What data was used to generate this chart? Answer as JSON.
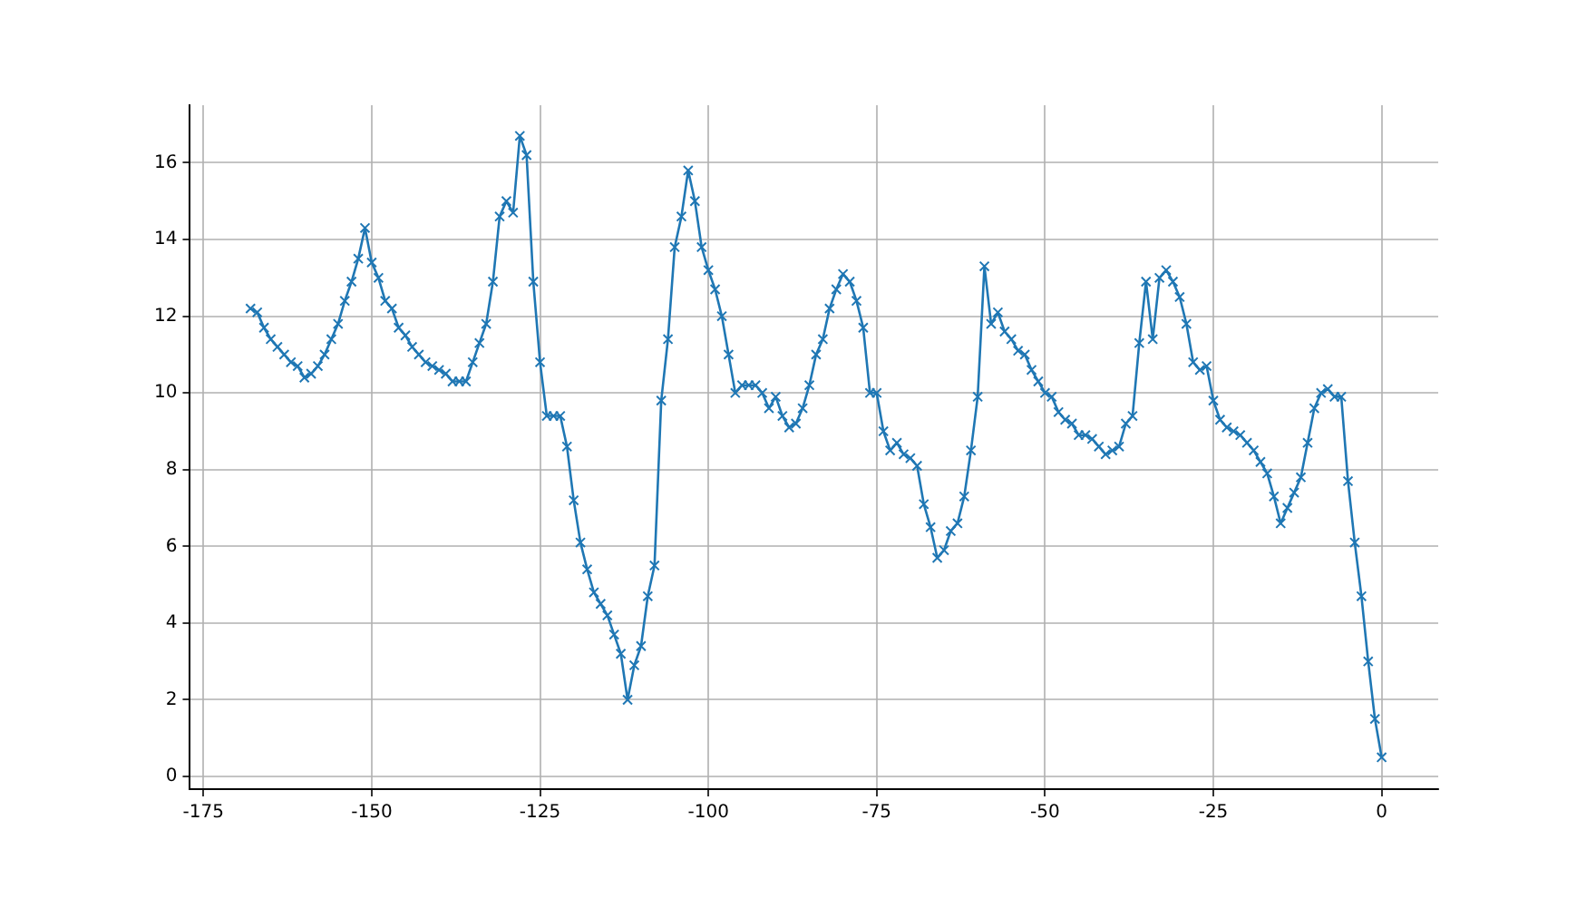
{
  "chart_data": {
    "type": "line",
    "x": [
      -168,
      -167,
      -166,
      -165,
      -164,
      -163,
      -162,
      -161,
      -160,
      -159,
      -158,
      -157,
      -156,
      -155,
      -154,
      -153,
      -152,
      -151,
      -150,
      -149,
      -148,
      -147,
      -146,
      -145,
      -144,
      -143,
      -142,
      -141,
      -140,
      -139,
      -138,
      -137,
      -136,
      -135,
      -134,
      -133,
      -132,
      -131,
      -130,
      -129,
      -128,
      -127,
      -126,
      -125,
      -124,
      -123,
      -122,
      -121,
      -120,
      -119,
      -118,
      -117,
      -116,
      -115,
      -114,
      -113,
      -112,
      -111,
      -110,
      -109,
      -108,
      -107,
      -106,
      -105,
      -104,
      -103,
      -102,
      -101,
      -100,
      -99,
      -98,
      -97,
      -96,
      -95,
      -94,
      -93,
      -92,
      -91,
      -90,
      -89,
      -88,
      -87,
      -86,
      -85,
      -84,
      -83,
      -82,
      -81,
      -80,
      -79,
      -78,
      -77,
      -76,
      -75,
      -74,
      -73,
      -72,
      -71,
      -70,
      -69,
      -68,
      -67,
      -66,
      -65,
      -64,
      -63,
      -62,
      -61,
      -60,
      -59,
      -58,
      -57,
      -56,
      -55,
      -54,
      -53,
      -52,
      -51,
      -50,
      -49,
      -48,
      -47,
      -46,
      -45,
      -44,
      -43,
      -42,
      -41,
      -40,
      -39,
      -38,
      -37,
      -36,
      -35,
      -34,
      -33,
      -32,
      -31,
      -30,
      -29,
      -28,
      -27,
      -26,
      -25,
      -24,
      -23,
      -22,
      -21,
      -20,
      -19,
      -18,
      -17,
      -16,
      -15,
      -14,
      -13,
      -12,
      -11,
      -10,
      -9,
      -8,
      -7,
      -6,
      -5,
      -4,
      -3,
      -2,
      -1,
      0
    ],
    "series": [
      {
        "color": "#1f77b4",
        "values": [
          12.2,
          12.1,
          11.7,
          11.4,
          11.2,
          11.0,
          10.8,
          10.7,
          10.4,
          10.5,
          10.7,
          11.0,
          11.4,
          11.8,
          12.4,
          12.9,
          13.5,
          14.3,
          13.4,
          13.0,
          12.4,
          12.2,
          11.7,
          11.5,
          11.2,
          11.0,
          10.8,
          10.7,
          10.6,
          10.5,
          10.3,
          10.3,
          10.3,
          10.8,
          11.3,
          11.8,
          12.9,
          14.6,
          15.0,
          14.7,
          16.7,
          16.2,
          12.9,
          10.8,
          9.4,
          9.4,
          9.4,
          8.6,
          7.2,
          6.1,
          5.4,
          4.8,
          4.5,
          4.2,
          3.7,
          3.2,
          2.0,
          2.9,
          3.4,
          4.7,
          5.5,
          9.8,
          11.4,
          13.8,
          14.6,
          15.8,
          15.0,
          13.8,
          13.2,
          12.7,
          12.0,
          11.0,
          10.0,
          10.2,
          10.2,
          10.2,
          10.0,
          9.6,
          9.9,
          9.4,
          9.1,
          9.2,
          9.6,
          10.2,
          11.0,
          11.4,
          12.2,
          12.7,
          13.1,
          12.9,
          12.4,
          11.7,
          10.0,
          10.0,
          9.0,
          8.5,
          8.7,
          8.4,
          8.3,
          8.1,
          7.1,
          6.5,
          5.7,
          5.9,
          6.4,
          6.6,
          7.3,
          8.5,
          9.9,
          13.3,
          11.8,
          12.1,
          11.6,
          11.4,
          11.1,
          11.0,
          10.6,
          10.3,
          10.0,
          9.9,
          9.5,
          9.3,
          9.2,
          8.9,
          8.9,
          8.8,
          8.6,
          8.4,
          8.5,
          8.6,
          9.2,
          9.4,
          11.3,
          12.9,
          11.4,
          13.0,
          13.2,
          12.9,
          12.5,
          11.8,
          10.8,
          10.6,
          10.7,
          9.8,
          9.3,
          9.1,
          9.0,
          8.9,
          8.7,
          8.5,
          8.2,
          7.9,
          7.3,
          6.6,
          7.0,
          7.4,
          7.8,
          8.7,
          9.6,
          10.0,
          10.1,
          9.9,
          9.9,
          7.7,
          6.1,
          4.7,
          3.0,
          1.5,
          0.5
        ]
      }
    ],
    "xlim": [
      -177,
      8.4
    ],
    "xticks": [
      -175,
      -150,
      -125,
      -100,
      -75,
      -50,
      -25,
      0
    ],
    "ylim": [
      -0.33,
      17.5
    ],
    "yticks": [
      0,
      2,
      4,
      6,
      8,
      10,
      12,
      14,
      16
    ],
    "grid": true,
    "marker": "cross",
    "line_style": "solid",
    "legend": false
  }
}
